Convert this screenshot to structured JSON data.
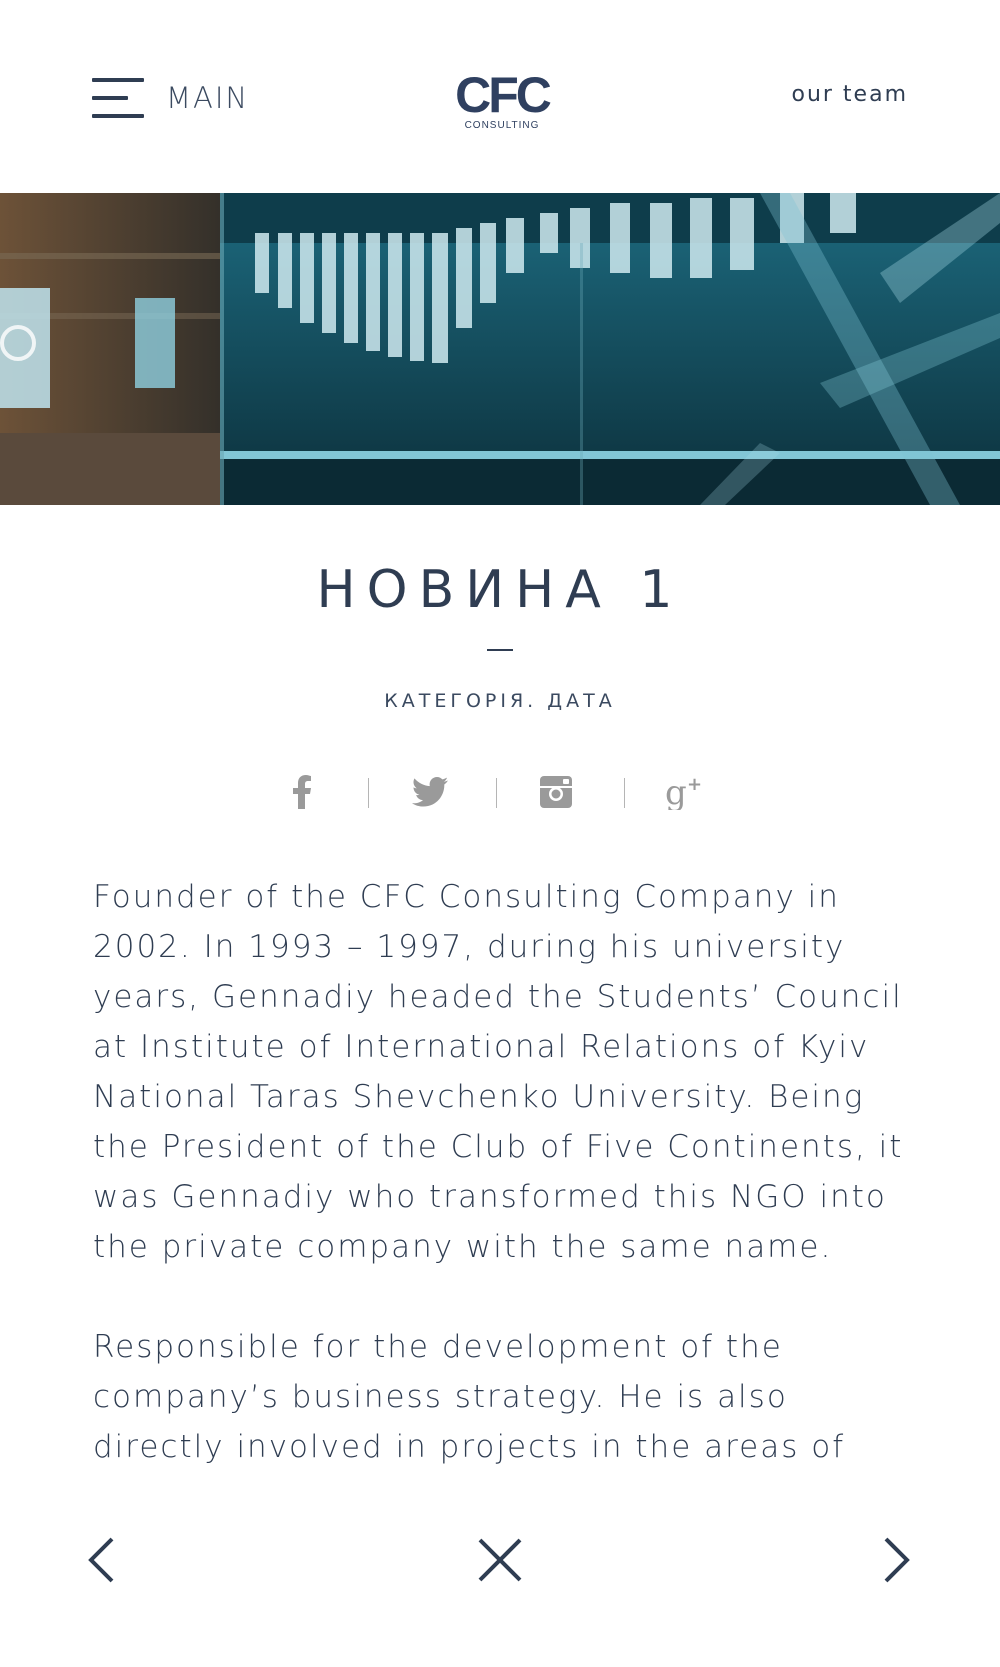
{
  "header": {
    "menu_label": "MAIN",
    "logo_main": "CFC",
    "logo_sub": "CONSULTING",
    "team_link": "our team"
  },
  "hero": {
    "image": "glass-display-interior-photo"
  },
  "article": {
    "title": "НОВИНА 1",
    "meta": "КАТЕГОРІЯ. ДАТА",
    "share_icons": [
      "facebook-icon",
      "twitter-icon",
      "instagram-icon",
      "google-plus-icon"
    ],
    "paragraphs": [
      "Founder of the CFC Consulting Company in 2002. In 1993 – 1997, during his university years, Gennadiy headed the Students’ Council at Institute of International Relations of Kyiv National Taras Shevchenko University. Being the President of the Club of Five Continents, it was Gennadiy who transformed this NGO into the private company with the same name.",
      "Responsible for the development of the company’s business strategy. He is also directly involved in projects in the areas of strategic"
    ]
  },
  "nav": {
    "prev_icon": "chevron-left-icon",
    "close_icon": "close-icon",
    "next_icon": "chevron-right-icon"
  },
  "colors": {
    "text": "#2f3d52",
    "icon_gray": "#9a9a9a",
    "separator": "#b5b5b5",
    "background": "#ffffff"
  }
}
